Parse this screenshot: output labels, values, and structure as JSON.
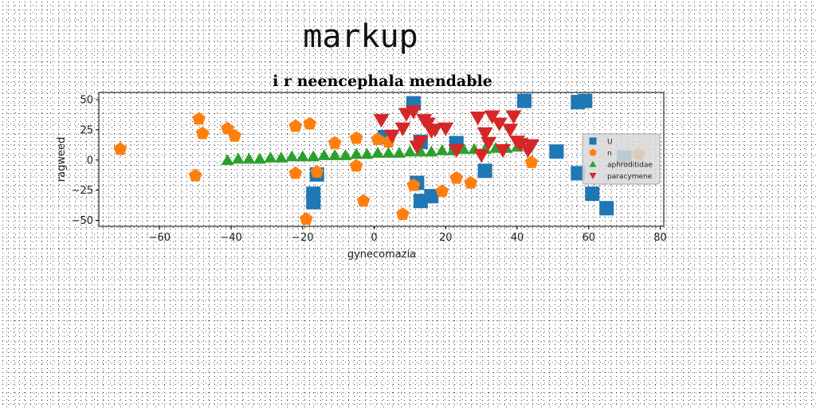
{
  "heading": "markup",
  "chart_data": {
    "type": "scatter",
    "title": "i r neencephala mendable",
    "xlabel": "gynecomazia",
    "ylabel": "ragweed",
    "xlim": [
      -77,
      81
    ],
    "ylim": [
      -55,
      56
    ],
    "xticks": [
      -60,
      -40,
      -20,
      0,
      20,
      40,
      60,
      80
    ],
    "yticks": [
      -50,
      -25,
      0,
      25,
      50
    ],
    "grid": false,
    "legend_position": "right",
    "series": [
      {
        "name": "U",
        "color": "#1f77b4",
        "marker": "square",
        "x": [
          11,
          42,
          57,
          59,
          3,
          13,
          23,
          51,
          31,
          70,
          57,
          61,
          65,
          -17,
          -17,
          -16,
          12,
          13,
          16
        ],
        "y": [
          47,
          49,
          48,
          49,
          19,
          15,
          14,
          7,
          -9,
          2,
          -11,
          -28,
          -40,
          -28,
          -35,
          -12,
          -19,
          -34,
          -30
        ]
      },
      {
        "name": "n",
        "color": "#ff7f0e",
        "marker": "pentagon",
        "x": [
          -71,
          -50,
          -49,
          -48,
          -41,
          -39,
          -22,
          -18,
          -11,
          -22,
          -16,
          -5,
          -5,
          1,
          4,
          8,
          11,
          19,
          23,
          27,
          44,
          74,
          -3,
          -19
        ],
        "y": [
          9,
          -13,
          34,
          22,
          26,
          20,
          28,
          30,
          14,
          -11,
          -10,
          18,
          -5,
          17,
          15,
          -45,
          -21,
          -26,
          -15,
          -19,
          -2,
          5,
          -34,
          -49
        ]
      },
      {
        "name": "aphroditidae",
        "color": "#2ca02c",
        "marker": "triangle-up",
        "x": [
          -41,
          -38,
          -35,
          -32,
          -29,
          -26,
          -23,
          -20,
          -17,
          -14,
          -11,
          -8,
          -5,
          -2,
          1,
          4,
          7,
          10,
          13,
          16,
          19,
          22,
          25,
          28,
          31,
          34,
          37,
          40
        ],
        "y": [
          0,
          1,
          1,
          1,
          2,
          2,
          3,
          3,
          3,
          4,
          4,
          4,
          5,
          5,
          6,
          6,
          6,
          7,
          7,
          7,
          8,
          8,
          9,
          9,
          9,
          10,
          10,
          11
        ]
      },
      {
        "name": "paracymene",
        "color": "#d62728",
        "marker": "triangle-down",
        "x": [
          2,
          5,
          8,
          9,
          11,
          12,
          13,
          14,
          15,
          16,
          17,
          20,
          23,
          29,
          31,
          33,
          35,
          36,
          38,
          39,
          40,
          41,
          43,
          44,
          30,
          32
        ],
        "y": [
          33,
          20,
          26,
          38,
          40,
          11,
          15,
          33,
          30,
          24,
          25,
          26,
          8,
          35,
          22,
          36,
          30,
          8,
          25,
          36,
          15,
          13,
          8,
          12,
          4,
          14
        ]
      }
    ]
  }
}
